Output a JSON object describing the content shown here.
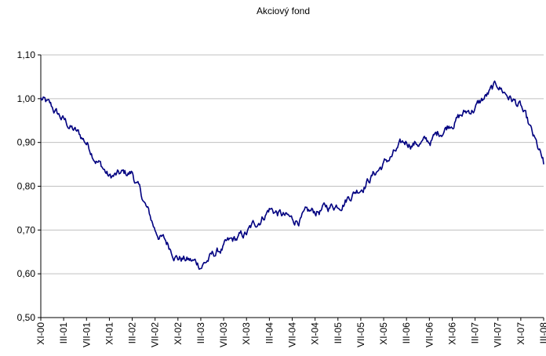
{
  "chart_data": {
    "type": "line",
    "title": "Akciový fond",
    "xlabel": "",
    "ylabel": "",
    "ylim": [
      0.5,
      1.1
    ],
    "y_ticks": [
      "0,50",
      "0,60",
      "0,70",
      "0,80",
      "0,90",
      "1,00",
      "1,10"
    ],
    "y_tick_values": [
      0.5,
      0.6,
      0.7,
      0.8,
      0.9,
      1.0,
      1.1
    ],
    "grid": true,
    "line_color": "#000080",
    "categories": [
      "XI-00",
      "III-01",
      "VII-01",
      "XI-01",
      "III-02",
      "VII-02",
      "XI-02",
      "III-03",
      "VII-03",
      "XI-03",
      "III-04",
      "VII-04",
      "XI-04",
      "III-05",
      "VII-05",
      "XI-05",
      "III-06",
      "VII-06",
      "XI-06",
      "III-07",
      "VII-07",
      "XI-07",
      "III-08"
    ],
    "series": [
      {
        "values": [
          1.0,
          0.95,
          0.9,
          0.82,
          0.83,
          0.7,
          0.64,
          0.62,
          0.66,
          0.69,
          0.75,
          0.72,
          0.74,
          0.76,
          0.8,
          0.85,
          0.9,
          0.9,
          0.95,
          0.98,
          1.03,
          0.98,
          0.85
        ]
      }
    ]
  }
}
